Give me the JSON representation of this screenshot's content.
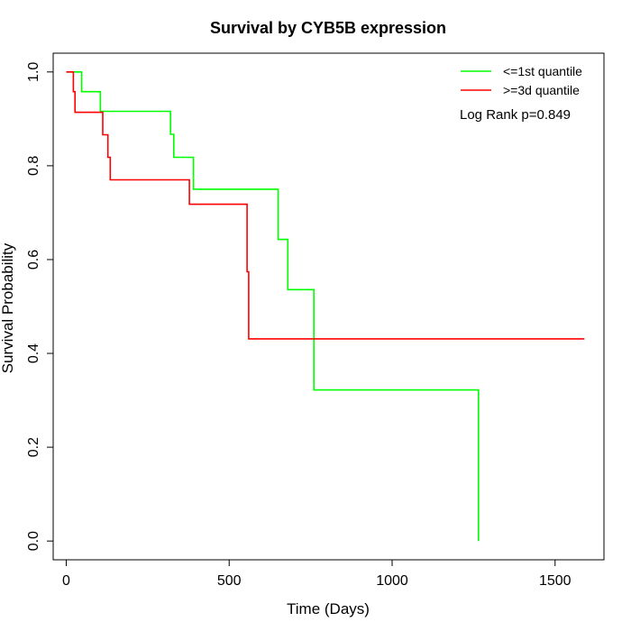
{
  "chart_data": {
    "type": "line",
    "step": true,
    "title": "Survival by CYB5B expression",
    "xlabel": "Time (Days)",
    "ylabel": "Survival Probability",
    "xlim": [
      -40,
      1650
    ],
    "ylim": [
      -0.04,
      1.04
    ],
    "x_ticks": [
      0,
      500,
      1000,
      1500
    ],
    "y_ticks": [
      0.0,
      0.2,
      0.4,
      0.6,
      0.8,
      1.0
    ],
    "x_tick_labels": [
      "0",
      "500",
      "1000",
      "1500"
    ],
    "y_tick_labels": [
      "0.0",
      "0.2",
      "0.4",
      "0.6",
      "0.8",
      "1.0"
    ],
    "grid": false,
    "legend_position": "top-right",
    "annotation": "Log Rank p=0.849",
    "series": [
      {
        "name": "<=1st quantile",
        "color": "#00ff00",
        "points": [
          [
            0,
            1.0
          ],
          [
            47,
            1.0
          ],
          [
            47,
            0.958
          ],
          [
            105,
            0.958
          ],
          [
            105,
            0.916
          ],
          [
            320,
            0.916
          ],
          [
            320,
            0.867
          ],
          [
            330,
            0.867
          ],
          [
            330,
            0.818
          ],
          [
            390,
            0.818
          ],
          [
            390,
            0.75
          ],
          [
            650,
            0.75
          ],
          [
            650,
            0.643
          ],
          [
            680,
            0.643
          ],
          [
            680,
            0.536
          ],
          [
            760,
            0.536
          ],
          [
            760,
            0.322
          ],
          [
            1265,
            0.322
          ],
          [
            1265,
            0.0
          ]
        ]
      },
      {
        "name": ">=3d quantile",
        "color": "#ff0000",
        "points": [
          [
            0,
            1.0
          ],
          [
            22,
            1.0
          ],
          [
            22,
            0.958
          ],
          [
            27,
            0.958
          ],
          [
            27,
            0.914
          ],
          [
            112,
            0.914
          ],
          [
            112,
            0.866
          ],
          [
            128,
            0.866
          ],
          [
            128,
            0.818
          ],
          [
            135,
            0.818
          ],
          [
            135,
            0.77
          ],
          [
            378,
            0.77
          ],
          [
            378,
            0.718
          ],
          [
            555,
            0.718
          ],
          [
            555,
            0.574
          ],
          [
            560,
            0.574
          ],
          [
            560,
            0.431
          ],
          [
            1590,
            0.431
          ]
        ]
      }
    ]
  }
}
